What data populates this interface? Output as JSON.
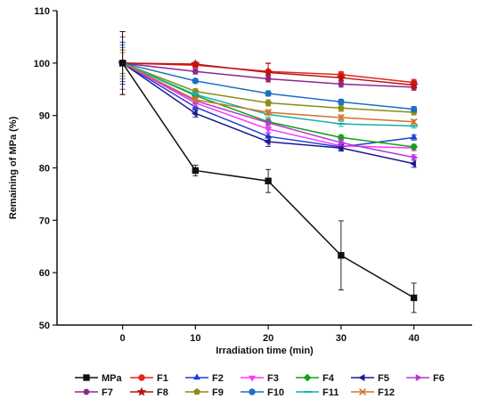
{
  "chart_data": {
    "type": "line",
    "title": "",
    "xlabel": "Irradiation time (min)",
    "ylabel": "Remaining of MPa (%)",
    "x": [
      0,
      10,
      20,
      30,
      40
    ],
    "xticks": [
      "0",
      "10",
      "20",
      "30",
      "40"
    ],
    "xlim": [
      -9,
      48
    ],
    "ylim": [
      50,
      110
    ],
    "yticks": [
      "50",
      "60",
      "70",
      "80",
      "90",
      "100",
      "110"
    ],
    "grid": false,
    "legend_position": "bottom",
    "series": [
      {
        "name": "MPa",
        "color": "#111111",
        "marker": "square",
        "values": [
          100,
          79.5,
          77.5,
          63.3,
          55.2
        ],
        "errors": [
          6.0,
          1.0,
          2.2,
          6.6,
          2.8
        ]
      },
      {
        "name": "F1",
        "color": "#e8221e",
        "marker": "circle",
        "values": [
          100,
          99.6,
          98.4,
          97.8,
          96.3
        ],
        "errors": [
          6.0,
          0.5,
          1.5,
          0.6,
          0.6
        ]
      },
      {
        "name": "F2",
        "color": "#1f3fd6",
        "marker": "triangle-up",
        "values": [
          100,
          91.6,
          86.0,
          84.0,
          85.8
        ],
        "errors": [
          3.5,
          0.6,
          0.7,
          0.6,
          0.5
        ]
      },
      {
        "name": "F3",
        "color": "#ff33ff",
        "marker": "triangle-down",
        "values": [
          100,
          92.4,
          87.4,
          84.2,
          83.8
        ],
        "errors": [
          2.5,
          0.6,
          0.8,
          1.0,
          0.5
        ]
      },
      {
        "name": "F4",
        "color": "#15a215",
        "marker": "diamond",
        "values": [
          100,
          93.8,
          88.8,
          85.8,
          84.0
        ],
        "errors": [
          2.0,
          0.6,
          0.6,
          0.5,
          0.5
        ]
      },
      {
        "name": "F5",
        "color": "#1c1c8c",
        "marker": "triangle-left",
        "values": [
          100,
          90.4,
          85.0,
          83.8,
          80.8
        ],
        "errors": [
          4.0,
          0.7,
          0.9,
          0.6,
          0.7
        ]
      },
      {
        "name": "F6",
        "color": "#b03ad8",
        "marker": "triangle-right",
        "values": [
          100,
          92.8,
          88.6,
          84.8,
          82.0
        ],
        "errors": [
          2.5,
          0.6,
          0.7,
          0.6,
          0.5
        ]
      },
      {
        "name": "F7",
        "color": "#8e278e",
        "marker": "hexagon",
        "values": [
          100,
          98.4,
          97.0,
          96.0,
          95.4
        ],
        "errors": [
          5.0,
          0.5,
          0.6,
          0.6,
          0.6
        ]
      },
      {
        "name": "F8",
        "color": "#b81414",
        "marker": "star",
        "values": [
          100,
          99.8,
          98.2,
          97.2,
          95.8
        ],
        "errors": [
          6.0,
          0.5,
          1.8,
          0.6,
          0.7
        ]
      },
      {
        "name": "F9",
        "color": "#8c8c18",
        "marker": "pentagon",
        "values": [
          100,
          94.6,
          92.4,
          91.4,
          90.6
        ],
        "errors": [
          2.0,
          0.5,
          0.6,
          0.6,
          0.5
        ]
      },
      {
        "name": "F10",
        "color": "#1c6fc4",
        "marker": "circle",
        "values": [
          100,
          96.6,
          94.2,
          92.6,
          91.2
        ],
        "errors": [
          3.0,
          0.4,
          0.5,
          0.5,
          0.5
        ]
      },
      {
        "name": "F11",
        "color": "#12b0b0",
        "marker": "dash",
        "values": [
          100,
          94.0,
          90.2,
          88.4,
          88.0
        ],
        "errors": [
          2.5,
          0.5,
          0.5,
          0.5,
          0.4
        ]
      },
      {
        "name": "F12",
        "color": "#d2732a",
        "marker": "cross",
        "values": [
          100,
          93.0,
          90.6,
          89.6,
          88.8
        ],
        "errors": [
          2.5,
          0.5,
          0.5,
          0.5,
          0.4
        ]
      }
    ]
  }
}
